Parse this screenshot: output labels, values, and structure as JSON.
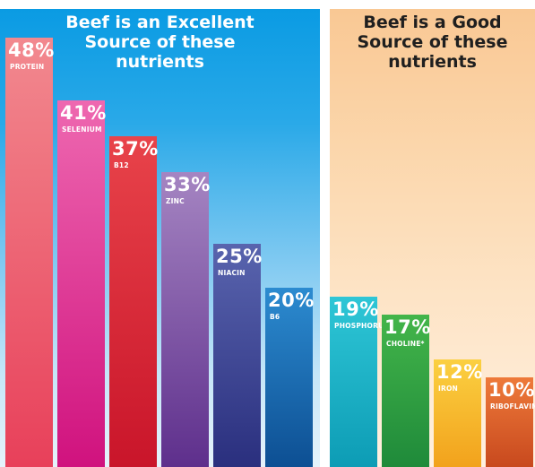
{
  "panels": {
    "excellent": {
      "title": "Beef is an Excellent\nSource of these\nnutrients"
    },
    "good": {
      "title": "Beef is a Good\nSource of these\nnutrients"
    }
  },
  "chart_data": {
    "type": "bar",
    "unit": "%",
    "groups": [
      {
        "title": "Beef is an Excellent Source of these nutrients",
        "bars": [
          {
            "label": "48%",
            "value": 48,
            "nutrient": "PROTEIN",
            "colors": [
              "#f2898f",
              "#e8405a"
            ]
          },
          {
            "label": "41%",
            "value": 41,
            "nutrient": "SELENIUM",
            "colors": [
              "#ee68b0",
              "#d0127e"
            ]
          },
          {
            "label": "37%",
            "value": 37,
            "nutrient": "B12",
            "colors": [
              "#e8434a",
              "#c9152a"
            ]
          },
          {
            "label": "33%",
            "value": 33,
            "nutrient": "ZINC",
            "colors": [
              "#a585c2",
              "#5e2f8c"
            ]
          },
          {
            "label": "25%",
            "value": 25,
            "nutrient": "NIACIN",
            "colors": [
              "#5964ae",
              "#2a2f7e"
            ]
          },
          {
            "label": "20%",
            "value": 20,
            "nutrient": "B6",
            "colors": [
              "#2c8bd0",
              "#0d4f93"
            ]
          }
        ]
      },
      {
        "title": "Beef is a Good Source of these nutrients",
        "bars": [
          {
            "label": "19%",
            "value": 19,
            "nutrient": "PHOSPHORUS",
            "colors": [
              "#2ec6d6",
              "#0d9cb5"
            ]
          },
          {
            "label": "17%",
            "value": 17,
            "nutrient": "CHOLINE*",
            "colors": [
              "#43b54a",
              "#1f8a3a"
            ]
          },
          {
            "label": "12%",
            "value": 12,
            "nutrient": "IRON",
            "colors": [
              "#fbd041",
              "#f2a21c"
            ]
          },
          {
            "label": "10%",
            "value": 10,
            "nutrient": "RIBOFLAVIN",
            "colors": [
              "#ee7a3a",
              "#c8491e"
            ]
          }
        ]
      }
    ]
  }
}
